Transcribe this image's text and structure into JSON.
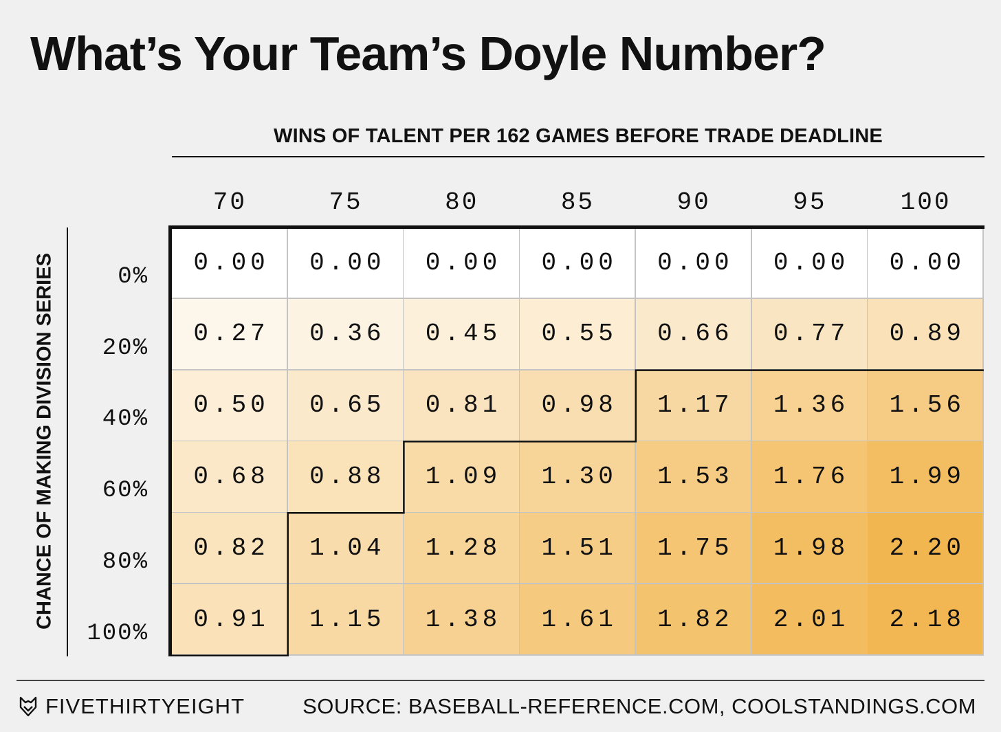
{
  "title": "What’s Your Team’s Doyle Number?",
  "footer": {
    "brand": "FIVETHIRTYEIGHT",
    "brand_icon": "fox-icon",
    "source": "SOURCE: BASEBALL-REFERENCE.COM, COOLSTANDINGS.COM"
  },
  "chart_data": {
    "type": "heatmap",
    "title": "What’s Your Team’s Doyle Number?",
    "xlabel": "WINS OF TALENT PER 162 GAMES BEFORE TRADE DEADLINE",
    "ylabel": "CHANCE OF MAKING DIVISION SERIES",
    "x": [
      "70",
      "75",
      "80",
      "85",
      "90",
      "95",
      "100"
    ],
    "y": [
      "0%",
      "20%",
      "40%",
      "60%",
      "80%",
      "100%"
    ],
    "values": [
      [
        0.0,
        0.0,
        0.0,
        0.0,
        0.0,
        0.0,
        0.0
      ],
      [
        0.27,
        0.36,
        0.45,
        0.55,
        0.66,
        0.77,
        0.89
      ],
      [
        0.5,
        0.65,
        0.81,
        0.98,
        1.17,
        1.36,
        1.56
      ],
      [
        0.68,
        0.88,
        1.09,
        1.3,
        1.53,
        1.76,
        1.99
      ],
      [
        0.82,
        1.04,
        1.28,
        1.51,
        1.75,
        1.98,
        2.2
      ],
      [
        0.91,
        1.15,
        1.38,
        1.61,
        1.82,
        2.01,
        2.18
      ]
    ],
    "value_format": "0.00",
    "threshold": 1.0,
    "colors": {
      "low": "#ffffff",
      "high": "#f2b650",
      "background": "#f0f0f0"
    }
  }
}
